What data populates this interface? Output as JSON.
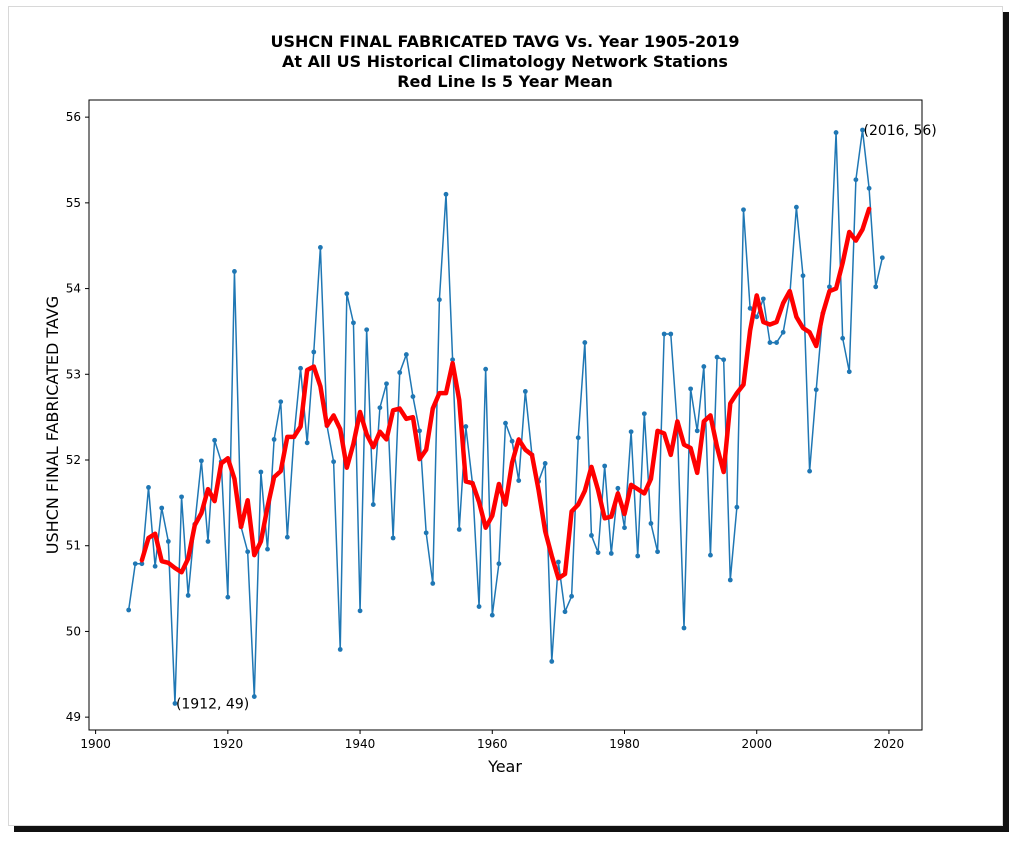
{
  "chart_data": {
    "type": "line",
    "title": "USHCN FINAL FABRICATED TAVG Vs. Year 1905-2019",
    "subtitle_lines": [
      "At All US Historical Climatology Network Stations",
      "Red Line Is 5 Year Mean"
    ],
    "xlabel": "Year",
    "ylabel": "USHCN FINAL FABRICATED TAVG",
    "xlim": [
      1899,
      2025
    ],
    "ylim": [
      48.85,
      56.2
    ],
    "xticks": [
      1900,
      1920,
      1940,
      1960,
      1980,
      2000,
      2020
    ],
    "yticks": [
      49,
      50,
      51,
      52,
      53,
      54,
      55,
      56
    ],
    "grid": false,
    "series": [
      {
        "color": "#1f77b4",
        "style": "line-with-markers",
        "x": [
          1905,
          1906,
          1907,
          1908,
          1909,
          1910,
          1911,
          1912,
          1913,
          1914,
          1915,
          1916,
          1917,
          1918,
          1919,
          1920,
          1921,
          1922,
          1923,
          1924,
          1925,
          1926,
          1927,
          1928,
          1929,
          1930,
          1931,
          1932,
          1933,
          1934,
          1935,
          1936,
          1937,
          1938,
          1939,
          1940,
          1941,
          1942,
          1943,
          1944,
          1945,
          1946,
          1947,
          1948,
          1949,
          1950,
          1951,
          1952,
          1953,
          1954,
          1955,
          1956,
          1957,
          1958,
          1959,
          1960,
          1961,
          1962,
          1963,
          1964,
          1965,
          1966,
          1967,
          1968,
          1969,
          1970,
          1971,
          1972,
          1973,
          1974,
          1975,
          1976,
          1977,
          1978,
          1979,
          1980,
          1981,
          1982,
          1983,
          1984,
          1985,
          1986,
          1987,
          1988,
          1989,
          1990,
          1991,
          1992,
          1993,
          1994,
          1995,
          1996,
          1997,
          1998,
          1999,
          2000,
          2001,
          2002,
          2003,
          2004,
          2005,
          2006,
          2007,
          2008,
          2009,
          2010,
          2011,
          2012,
          2013,
          2014,
          2015,
          2016,
          2017,
          2018,
          2019
        ],
        "y": [
          50.25,
          50.79,
          50.79,
          51.68,
          50.76,
          51.44,
          51.05,
          49.16,
          51.57,
          50.42,
          51.25,
          51.99,
          51.05,
          52.23,
          51.98,
          50.4,
          54.2,
          51.22,
          50.93,
          49.24,
          51.86,
          50.96,
          52.24,
          52.68,
          51.1,
          52.27,
          53.07,
          52.2,
          53.26,
          54.48,
          52.4,
          51.98,
          49.79,
          53.94,
          53.6,
          50.24,
          53.52,
          51.48,
          52.61,
          52.89,
          51.09,
          53.02,
          53.23,
          52.74,
          52.34,
          51.15,
          50.56,
          53.87,
          55.1,
          53.17,
          51.19,
          52.39,
          51.73,
          50.29,
          53.06,
          50.19,
          50.79,
          52.43,
          52.22,
          51.76,
          52.8,
          52.06,
          51.75,
          51.96,
          49.65,
          50.81,
          50.23,
          50.41,
          52.26,
          53.37,
          51.12,
          50.92,
          51.93,
          50.91,
          51.67,
          51.21,
          52.33,
          50.88,
          52.54,
          51.26,
          50.93,
          53.47,
          53.47,
          52.38,
          50.04,
          52.83,
          52.34,
          53.09,
          50.89,
          53.2,
          53.17,
          50.6,
          51.45,
          54.92,
          53.77,
          53.67,
          53.88,
          53.37,
          53.37,
          53.49,
          53.92,
          54.95,
          54.15,
          51.87,
          52.82,
          53.71,
          54.02,
          55.82,
          53.42,
          53.03,
          55.27,
          55.85,
          55.17,
          54.02,
          54.36
        ]
      },
      {
        "color": "#ff0000",
        "style": "thick-line",
        "x": [
          1907,
          1908,
          1909,
          1910,
          1911,
          1912,
          1913,
          1914,
          1915,
          1916,
          1917,
          1918,
          1919,
          1920,
          1921,
          1922,
          1923,
          1924,
          1925,
          1926,
          1927,
          1928,
          1929,
          1930,
          1931,
          1932,
          1933,
          1934,
          1935,
          1936,
          1937,
          1938,
          1939,
          1940,
          1941,
          1942,
          1943,
          1944,
          1945,
          1946,
          1947,
          1948,
          1949,
          1950,
          1951,
          1952,
          1953,
          1954,
          1955,
          1956,
          1957,
          1958,
          1959,
          1960,
          1961,
          1962,
          1963,
          1964,
          1965,
          1966,
          1967,
          1968,
          1969,
          1970,
          1971,
          1972,
          1973,
          1974,
          1975,
          1976,
          1977,
          1978,
          1979,
          1980,
          1981,
          1982,
          1983,
          1984,
          1985,
          1986,
          1987,
          1988,
          1989,
          1990,
          1991,
          1992,
          1993,
          1994,
          1995,
          1996,
          1997,
          1998,
          1999,
          2000,
          2001,
          2002,
          2003,
          2004,
          2005,
          2006,
          2007,
          2008,
          2009,
          2010,
          2011,
          2012,
          2013,
          2014,
          2015,
          2016,
          2017
        ],
        "y": [
          50.83,
          51.09,
          51.14,
          50.82,
          50.8,
          50.74,
          50.69,
          50.85,
          51.24,
          51.38,
          51.66,
          51.52,
          51.96,
          52.02,
          51.78,
          51.22,
          51.53,
          50.89,
          51.05,
          51.45,
          51.8,
          51.87,
          52.27,
          52.27,
          52.39,
          53.05,
          53.09,
          52.86,
          52.4,
          52.52,
          52.36,
          51.91,
          52.19,
          52.56,
          52.3,
          52.15,
          52.33,
          52.24,
          52.58,
          52.6,
          52.48,
          52.5,
          52.01,
          52.12,
          52.6,
          52.78,
          52.78,
          53.13,
          52.7,
          51.75,
          51.73,
          51.51,
          51.21,
          51.35,
          51.72,
          51.48,
          51.97,
          52.24,
          52.12,
          52.06,
          51.65,
          51.17,
          50.88,
          50.62,
          50.67,
          51.4,
          51.48,
          51.64,
          51.92,
          51.65,
          51.32,
          51.34,
          51.61,
          51.37,
          51.71,
          51.66,
          51.61,
          51.78,
          52.34,
          52.31,
          52.06,
          52.45,
          52.18,
          52.14,
          51.85,
          52.45,
          52.52,
          52.15,
          51.86,
          52.66,
          52.78,
          52.88,
          53.51,
          53.92,
          53.61,
          53.58,
          53.61,
          53.83,
          53.97,
          53.67,
          53.54,
          53.49,
          53.33,
          53.71,
          53.97,
          54.0,
          54.3,
          54.66,
          54.56,
          54.69,
          54.93
        ]
      }
    ],
    "annotations": [
      {
        "text": "(1912, 49)",
        "x": 1912,
        "y": 49.16
      },
      {
        "text": "(2016, 56)",
        "x": 2016,
        "y": 55.85
      }
    ]
  }
}
